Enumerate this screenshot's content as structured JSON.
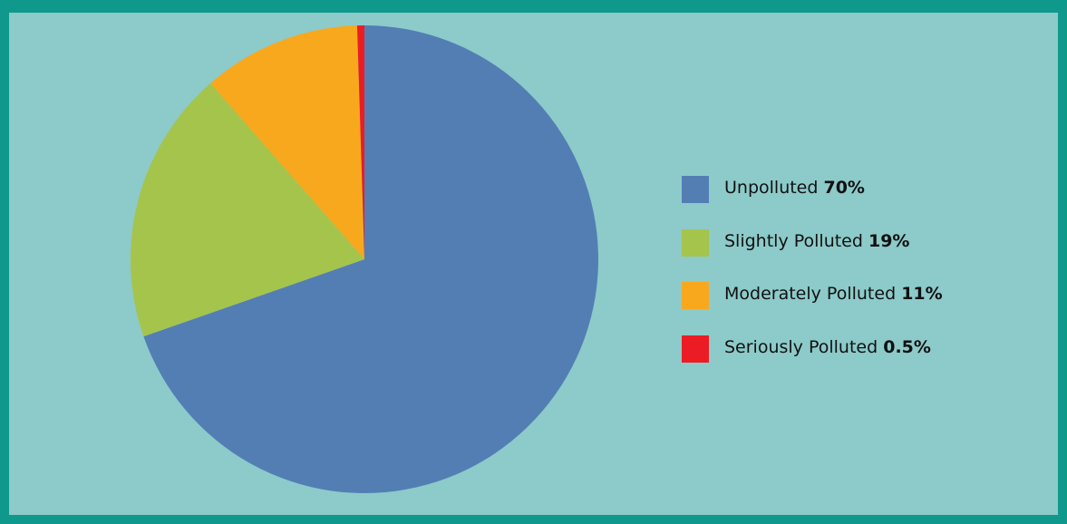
{
  "chart_data": {
    "type": "pie",
    "slices": [
      {
        "label": "Unpolluted",
        "display": "70%",
        "value": 70,
        "color": "#537eb4"
      },
      {
        "label": "Slightly Polluted",
        "display": "19%",
        "value": 19,
        "color": "#a5c44c"
      },
      {
        "label": "Moderately Polluted",
        "display": "11%",
        "value": 11,
        "color": "#f8a81d"
      },
      {
        "label": "Seriously Polluted",
        "display": "0.5%",
        "value": 0.5,
        "color": "#ec1c24"
      }
    ],
    "legend_position": "right"
  },
  "colors": {
    "border": "#0e998c",
    "background": "#8dcaca"
  }
}
